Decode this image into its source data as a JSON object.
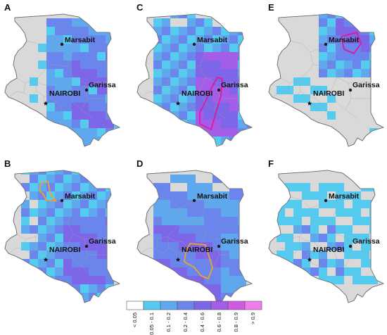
{
  "panels": [
    "A",
    "B",
    "C",
    "D",
    "E",
    "F"
  ],
  "cities": {
    "marsabit": "Marsabit",
    "garissa": "Garissa",
    "nairobi": "NAIROBI"
  },
  "legend": {
    "labels": [
      "< 0.05",
      "0.05 - 0.1",
      "0.1 - 0.2",
      "0.2 - 0.4",
      "0.4 - 0.6",
      "0.6 - 0.8",
      "0.8 - 0.9",
      "> 0.9"
    ],
    "colors": [
      "#ffffff",
      "#55cbf0",
      "#5fa8ee",
      "#6a86ec",
      "#7e66e8",
      "#a35de8",
      "#d05be0",
      "#f07ee9"
    ]
  },
  "highlight_colors": {
    "magenta": "#e0199c",
    "orange": "#f0a030"
  },
  "icons": {
    "city_marker": "dot-icon",
    "capital_marker": "star-icon"
  }
}
